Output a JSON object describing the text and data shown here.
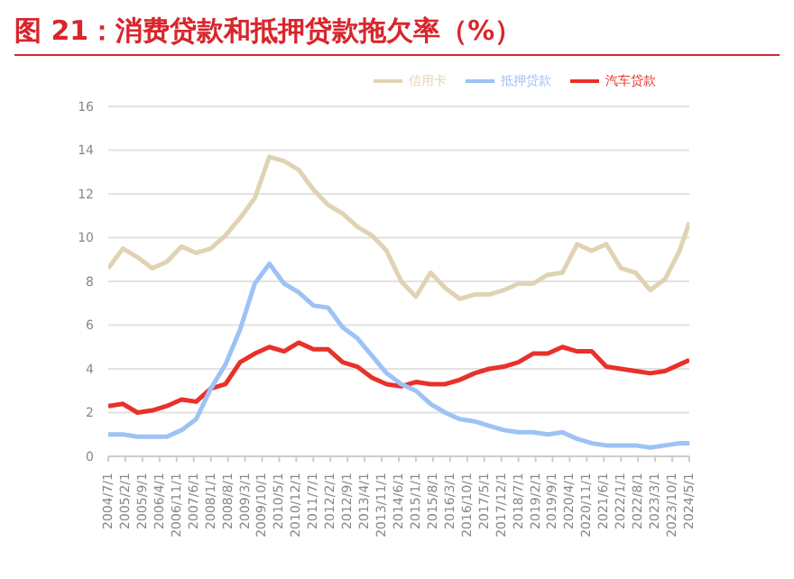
{
  "chart_data": {
    "type": "line",
    "title": "图 21：消费贷款和抵押贷款拖欠率（%）",
    "x": [
      "2004-07",
      "2005-01",
      "2005-07",
      "2006-01",
      "2006-07",
      "2007-01",
      "2007-07",
      "2008-01",
      "2008-07",
      "2009-01",
      "2009-07",
      "2010-01",
      "2010-07",
      "2011-01",
      "2011-07",
      "2012-01",
      "2012-07",
      "2013-01",
      "2013-07",
      "2014-01",
      "2014-07",
      "2015-01",
      "2015-07",
      "2016-01",
      "2016-07",
      "2017-01",
      "2017-07",
      "2018-01",
      "2018-07",
      "2019-01",
      "2019-07",
      "2020-01",
      "2020-07",
      "2021-01",
      "2021-07",
      "2022-01",
      "2022-07",
      "2023-01",
      "2023-07",
      "2024-01",
      "2024-05"
    ],
    "series": [
      {
        "name": "汽车贷款",
        "color": "#e8312a",
        "values": [
          2.3,
          2.4,
          2.0,
          2.1,
          2.3,
          2.6,
          2.5,
          3.1,
          3.3,
          4.3,
          4.7,
          5.0,
          4.8,
          5.2,
          4.9,
          4.9,
          4.3,
          4.1,
          3.6,
          3.3,
          3.2,
          3.4,
          3.3,
          3.3,
          3.5,
          3.8,
          4.0,
          4.1,
          4.3,
          4.7,
          4.7,
          5.0,
          4.8,
          4.8,
          4.1,
          4.0,
          3.9,
          3.8,
          3.9,
          4.2,
          4.4
        ]
      },
      {
        "name": "信用卡",
        "color": "#e0d3b4",
        "values": [
          8.6,
          9.5,
          9.1,
          8.6,
          8.9,
          9.6,
          9.3,
          9.5,
          10.1,
          10.9,
          11.8,
          13.7,
          13.5,
          13.1,
          12.2,
          11.5,
          11.1,
          10.5,
          10.1,
          9.4,
          8.0,
          7.3,
          8.4,
          7.7,
          7.2,
          7.4,
          7.4,
          7.6,
          7.9,
          7.9,
          8.3,
          8.4,
          9.7,
          9.4,
          9.7,
          8.6,
          8.4,
          7.6,
          8.1,
          9.4,
          10.7
        ]
      },
      {
        "name": "抵押贷款",
        "color": "#9dc3f5",
        "values": [
          1.0,
          1.0,
          0.9,
          0.9,
          0.9,
          1.2,
          1.7,
          3.1,
          4.2,
          5.8,
          7.9,
          8.8,
          7.9,
          7.5,
          6.9,
          6.8,
          5.9,
          5.4,
          4.6,
          3.8,
          3.3,
          3.0,
          2.4,
          2.0,
          1.7,
          1.6,
          1.4,
          1.2,
          1.1,
          1.1,
          1.0,
          1.1,
          0.8,
          0.6,
          0.5,
          0.5,
          0.5,
          0.4,
          0.5,
          0.6,
          0.6
        ]
      }
    ],
    "xlim": [
      "2004-07",
      "2024-05"
    ],
    "xticks": [
      {
        "value": "2004-07",
        "label": "2004/7/1"
      },
      {
        "value": "2005-02",
        "label": "2005/2/1"
      },
      {
        "value": "2005-09",
        "label": "2005/9/1"
      },
      {
        "value": "2006-04",
        "label": "2006/4/1"
      },
      {
        "value": "2006-11",
        "label": "2006/11/1"
      },
      {
        "value": "2007-06",
        "label": "2007/6/1"
      },
      {
        "value": "2008-01",
        "label": "2008/1/1"
      },
      {
        "value": "2008-08",
        "label": "2008/8/1"
      },
      {
        "value": "2009-03",
        "label": "2009/3/1"
      },
      {
        "value": "2009-10",
        "label": "2009/10/1"
      },
      {
        "value": "2010-05",
        "label": "2010/5/1"
      },
      {
        "value": "2010-12",
        "label": "2010/12/1"
      },
      {
        "value": "2011-07",
        "label": "2011/7/1"
      },
      {
        "value": "2012-02",
        "label": "2012/2/1"
      },
      {
        "value": "2012-09",
        "label": "2012/9/1"
      },
      {
        "value": "2013-04",
        "label": "2013/4/1"
      },
      {
        "value": "2013-11",
        "label": "2013/11/1"
      },
      {
        "value": "2014-06",
        "label": "2014/6/1"
      },
      {
        "value": "2015-01",
        "label": "2015/1/1"
      },
      {
        "value": "2015-08",
        "label": "2015/8/1"
      },
      {
        "value": "2016-03",
        "label": "2016/3/1"
      },
      {
        "value": "2016-10",
        "label": "2016/10/1"
      },
      {
        "value": "2017-05",
        "label": "2017/5/1"
      },
      {
        "value": "2017-12",
        "label": "2017/12/1"
      },
      {
        "value": "2018-07",
        "label": "2018/7/1"
      },
      {
        "value": "2019-02",
        "label": "2019/2/1"
      },
      {
        "value": "2019-09",
        "label": "2019/9/1"
      },
      {
        "value": "2020-04",
        "label": "2020/4/1"
      },
      {
        "value": "2020-11",
        "label": "2020/11/1"
      },
      {
        "value": "2021-06",
        "label": "2021/6/1"
      },
      {
        "value": "2022-01",
        "label": "2022/1/1"
      },
      {
        "value": "2022-08",
        "label": "2022/8/1"
      },
      {
        "value": "2023-03",
        "label": "2023/3/1"
      },
      {
        "value": "2023-10",
        "label": "2023/10/1"
      },
      {
        "value": "2024-05",
        "label": "2024/5/1"
      }
    ],
    "ylim": [
      0,
      16
    ],
    "yticks": [
      0,
      2,
      4,
      6,
      8,
      10,
      12,
      14,
      16
    ],
    "grid": "y",
    "legend": "top",
    "marker": "none",
    "line_style": "solid"
  }
}
